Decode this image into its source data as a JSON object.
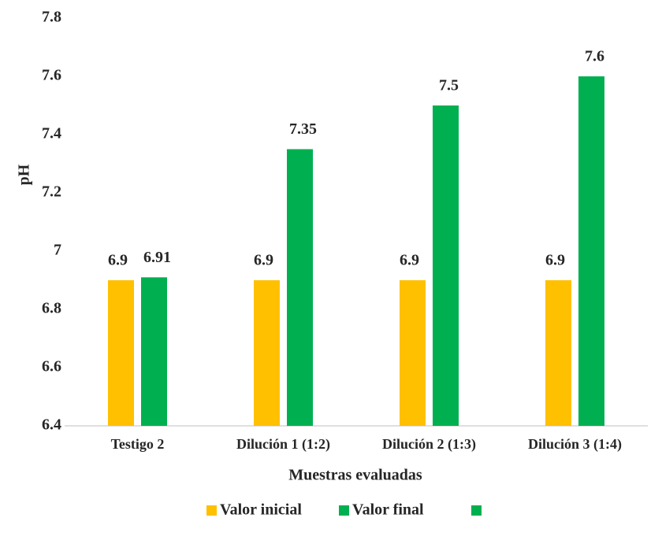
{
  "chart_data": {
    "type": "bar",
    "categories": [
      "Testigo 2",
      "Dilución 1 (1:2)",
      "Dilución 2 (1:3)",
      "Dilución 3 (1:4)"
    ],
    "series": [
      {
        "name": "Valor inicial",
        "color": "#ffc000",
        "values": [
          6.9,
          6.9,
          6.9,
          6.9
        ]
      },
      {
        "name": "Valor final",
        "color": "#00b050",
        "values": [
          6.91,
          7.35,
          7.5,
          7.6
        ]
      }
    ],
    "ylim": [
      6.4,
      7.8
    ],
    "yticks": [
      6.4,
      6.6,
      6.8,
      7,
      7.2,
      7.4,
      7.6,
      7.8
    ],
    "y_label": "pH",
    "x_label": "Muestras evaluadas",
    "grid": false
  }
}
